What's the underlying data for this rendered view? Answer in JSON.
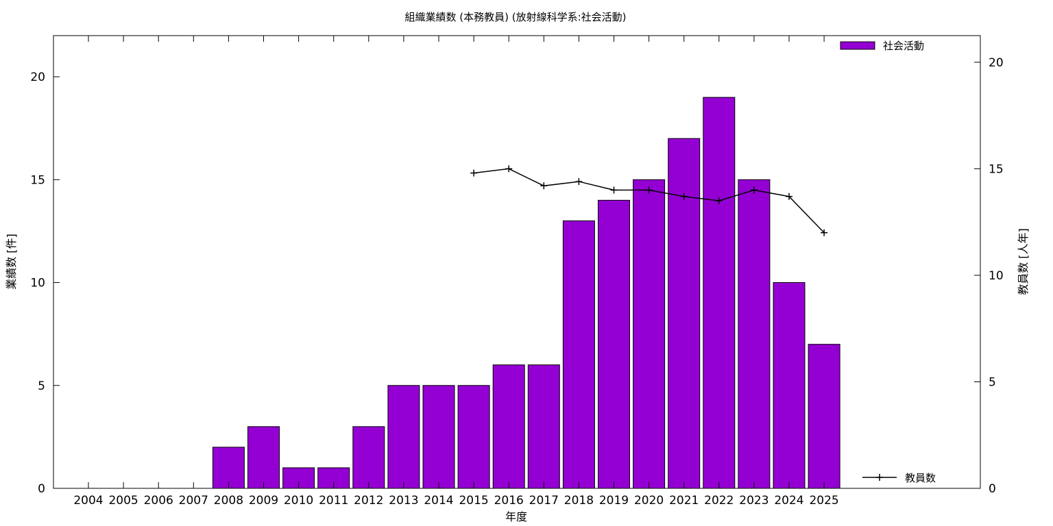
{
  "chart_data": {
    "type": "bar",
    "title": "組織業績数 (本務教員) (放射線科学系:社会活動)",
    "xlabel": "年度",
    "ylabel": "業績数 [件]",
    "y2label": "教員数 [人年]",
    "categories": [
      "2004",
      "2005",
      "2006",
      "2007",
      "2008",
      "2009",
      "2010",
      "2011",
      "2012",
      "2013",
      "2014",
      "2015",
      "2016",
      "2017",
      "2018",
      "2019",
      "2020",
      "2021",
      "2022",
      "2023",
      "2024",
      "2025"
    ],
    "series": [
      {
        "name": "社会活動",
        "type": "bar",
        "axis": "left",
        "color": "#9400d3",
        "values": [
          0,
          0,
          0,
          0,
          2,
          3,
          1,
          1,
          3,
          5,
          5,
          5,
          6,
          6,
          13,
          14,
          15,
          17,
          19,
          15,
          10,
          7
        ]
      },
      {
        "name": "教員数",
        "type": "line",
        "axis": "right",
        "color": "#000000",
        "values": [
          null,
          null,
          null,
          null,
          null,
          null,
          null,
          null,
          null,
          null,
          null,
          14.8,
          15.0,
          14.2,
          14.4,
          14.0,
          14.0,
          13.7,
          13.5,
          14.0,
          13.7,
          12.0
        ]
      }
    ],
    "ylim": [
      0,
      22
    ],
    "yticks": [
      0,
      5,
      10,
      15,
      20
    ],
    "y2lim": [
      0,
      21.25
    ],
    "y2ticks": [
      0,
      5,
      10,
      15,
      20
    ],
    "grid": false,
    "legend": [
      "top-right",
      "bottom-right"
    ]
  }
}
